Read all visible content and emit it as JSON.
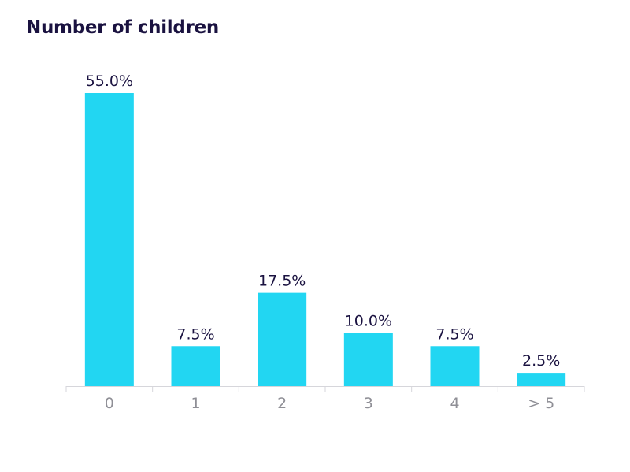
{
  "chart_data": {
    "type": "bar",
    "title": "Number of children",
    "categories": [
      "0",
      "1",
      "2",
      "3",
      "4",
      "> 5"
    ],
    "values": [
      55.0,
      7.5,
      17.5,
      10.0,
      7.5,
      2.5
    ],
    "data_labels": [
      "55.0%",
      "7.5%",
      "17.5%",
      "10.0%",
      "7.5%",
      "2.5%"
    ],
    "unit": "%",
    "xlabel": "",
    "ylabel": "",
    "ylim": [
      0,
      55
    ],
    "grid": false,
    "legend": "none",
    "colors": {
      "bar": "#22d6f2",
      "title": "#1a1240",
      "data_label": "#1a1240",
      "tick_label": "#8f8f96",
      "axis": "#d6d6db"
    }
  }
}
